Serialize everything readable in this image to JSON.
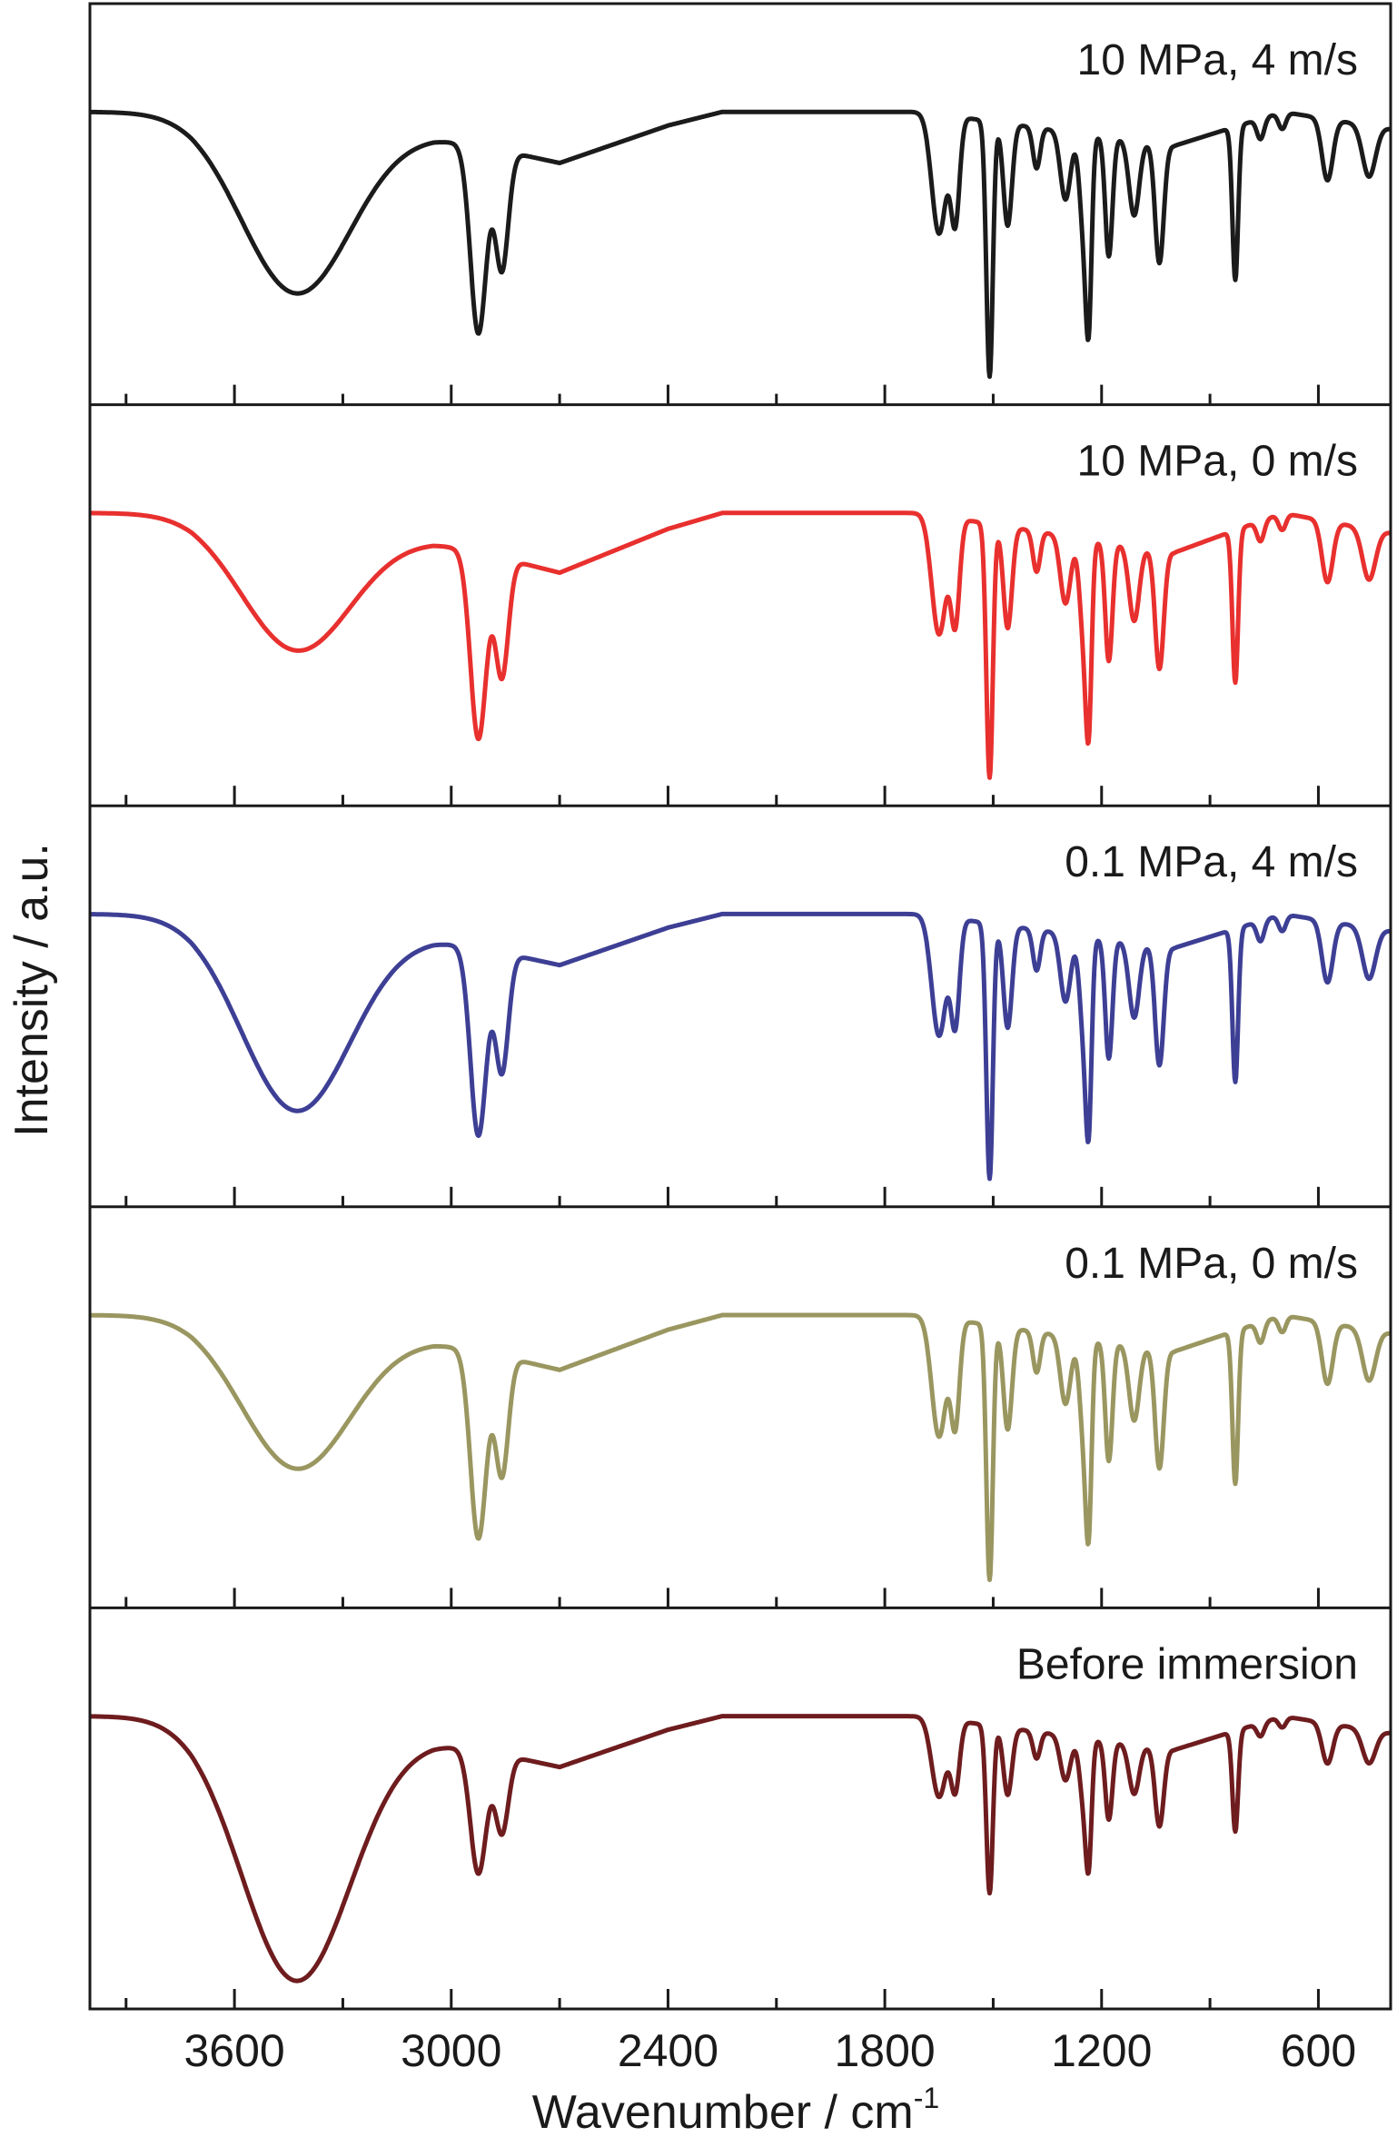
{
  "chart_data": {
    "type": "line",
    "layout": "stacked-panels",
    "xlabel": "Wavenumber / cm",
    "xlabel_superscript": "-1",
    "ylabel": "Intensity / a.u.",
    "xlim": [
      4000,
      400
    ],
    "x_reversed": true,
    "x_ticks": [
      3600,
      3000,
      2400,
      1800,
      1200,
      600
    ],
    "x_minor_ticks": [
      3900,
      3300,
      2700,
      2100,
      1500,
      900
    ],
    "grid": false,
    "legend": "none",
    "panels": [
      {
        "label": "10 MPa, 4 m/s",
        "color": "#1b1b1b",
        "depth_scale": 1.0,
        "broad_scale": 0.67
      },
      {
        "label": "10 MPa, 0 m/s",
        "color": "#e8302e",
        "depth_scale": 0.85,
        "broad_scale": 0.42
      },
      {
        "label": "0.1 MPa, 4 m/s",
        "color": "#3d3f95",
        "depth_scale": 1.0,
        "broad_scale": 0.73
      },
      {
        "label": "0.1 MPa, 0 m/s",
        "color": "#9a9660",
        "depth_scale": 0.93,
        "broad_scale": 0.52
      },
      {
        "label": "Before immersion",
        "color": "#6e1c1e",
        "depth_scale": 0.66,
        "broad_scale": 1.0
      }
    ],
    "baseline_profile": [
      [
        4000,
        1.0
      ],
      [
        3720,
        1.0
      ],
      [
        3050,
        0.93
      ],
      [
        2700,
        0.85
      ],
      [
        2400,
        0.96
      ],
      [
        2250,
        1.0
      ],
      [
        1800,
        1.0
      ],
      [
        1700,
        1.0
      ],
      [
        1000,
        0.9
      ],
      [
        700,
        1.0
      ],
      [
        400,
        0.95
      ]
    ],
    "bands": [
      {
        "center": 3430,
        "width": 150,
        "depth": 0.75,
        "type": "broad"
      },
      {
        "center": 2925,
        "width": 22,
        "depth": 0.55
      },
      {
        "center": 2860,
        "width": 18,
        "depth": 0.35
      },
      {
        "center": 1650,
        "width": 20,
        "depth": 0.35
      },
      {
        "center": 1605,
        "width": 12,
        "depth": 0.3
      },
      {
        "center": 1510,
        "width": 9,
        "depth": 0.75
      },
      {
        "center": 1460,
        "width": 12,
        "depth": 0.3
      },
      {
        "center": 1380,
        "width": 10,
        "depth": 0.12
      },
      {
        "center": 1300,
        "width": 14,
        "depth": 0.2
      },
      {
        "center": 1248,
        "width": 12,
        "depth": 0.3
      },
      {
        "center": 1235,
        "width": 8,
        "depth": 0.42
      },
      {
        "center": 1180,
        "width": 10,
        "depth": 0.35
      },
      {
        "center": 1110,
        "width": 14,
        "depth": 0.22
      },
      {
        "center": 1040,
        "width": 12,
        "depth": 0.35
      },
      {
        "center": 830,
        "width": 8,
        "depth": 0.45
      },
      {
        "center": 760,
        "width": 10,
        "depth": 0.06
      },
      {
        "center": 700,
        "width": 10,
        "depth": 0.05
      },
      {
        "center": 575,
        "width": 15,
        "depth": 0.18
      },
      {
        "center": 460,
        "width": 18,
        "depth": 0.15
      }
    ]
  }
}
